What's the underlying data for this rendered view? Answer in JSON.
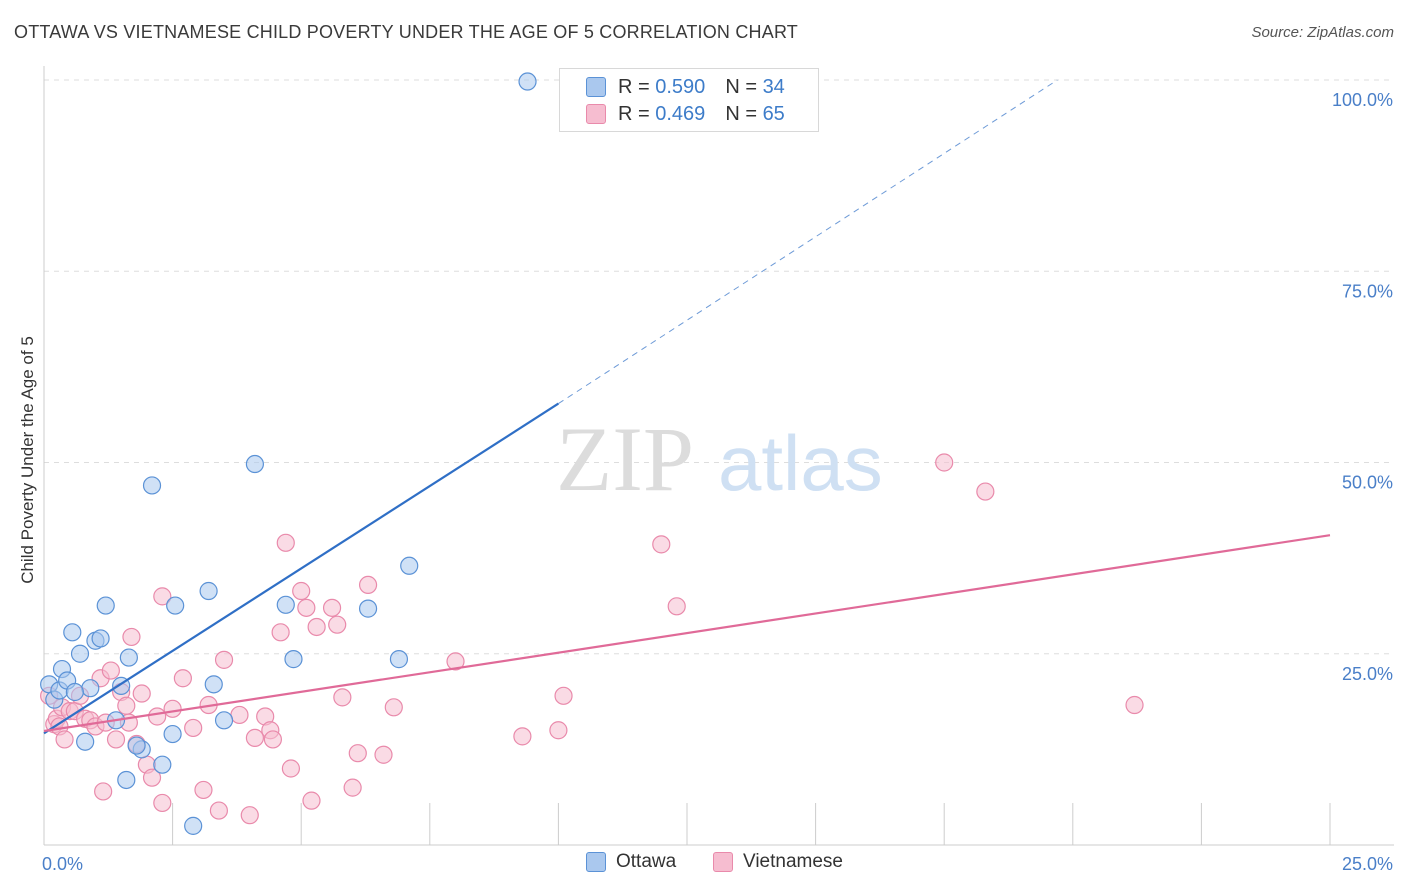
{
  "title": "OTTAWA VS VIETNAMESE CHILD POVERTY UNDER THE AGE OF 5 CORRELATION CHART",
  "source": "Source: ZipAtlas.com",
  "watermark": {
    "zip": "ZIP",
    "atlas": "atlas"
  },
  "colors": {
    "ottawa_fill": "#aac8ee",
    "ottawa_stroke": "#5b92d6",
    "ottawa_line": "#2f6fc6",
    "viet_fill": "#f6bdd0",
    "viet_stroke": "#e98aab",
    "viet_line": "#e06a98",
    "tick_label": "#4a7fc8",
    "grid": "#dddddd"
  },
  "legend": {
    "rows": [
      {
        "r_label": "R =",
        "r_value": "0.590",
        "n_label": "N =",
        "n_value": "34"
      },
      {
        "r_label": "R =",
        "r_value": "0.469",
        "n_label": "N =",
        "n_value": "65"
      }
    ]
  },
  "bottom_legend": {
    "ottawa": "Ottawa",
    "vietnamese": "Vietnamese"
  },
  "chart_data": {
    "type": "scatter",
    "title": "OTTAWA VS VIETNAMESE CHILD POVERTY UNDER THE AGE OF 5 CORRELATION CHART",
    "xlabel": "",
    "ylabel": "Child Poverty Under the Age of 5",
    "xlim": [
      0,
      25
    ],
    "ylim": [
      0,
      100
    ],
    "x_tick_labels": [
      "0.0%",
      "25.0%"
    ],
    "y_tick_labels": [
      "25.0%",
      "50.0%",
      "75.0%",
      "100.0%"
    ],
    "y_ticks": [
      25,
      50,
      75,
      100
    ],
    "grid": true,
    "legend_position": "top-center",
    "series": [
      {
        "name": "Ottawa",
        "r": 0.59,
        "n": 34,
        "trend": {
          "x0": 0,
          "y0": 14.6,
          "x1": 10.0,
          "y1": 57.7,
          "x_dash_end": 19.7,
          "y_dash_end": 100
        },
        "points": [
          [
            0.1,
            21.0
          ],
          [
            0.2,
            19.0
          ],
          [
            0.3,
            20.2
          ],
          [
            0.35,
            23.0
          ],
          [
            0.45,
            21.5
          ],
          [
            0.55,
            27.8
          ],
          [
            0.7,
            25.0
          ],
          [
            0.8,
            13.5
          ],
          [
            0.9,
            20.5
          ],
          [
            1.0,
            26.7
          ],
          [
            1.1,
            27.0
          ],
          [
            1.2,
            31.3
          ],
          [
            1.4,
            16.3
          ],
          [
            1.5,
            20.8
          ],
          [
            1.6,
            8.5
          ],
          [
            1.65,
            24.5
          ],
          [
            1.9,
            12.5
          ],
          [
            2.1,
            47.0
          ],
          [
            2.3,
            10.5
          ],
          [
            2.5,
            14.5
          ],
          [
            2.55,
            31.3
          ],
          [
            3.2,
            33.2
          ],
          [
            3.3,
            21.0
          ],
          [
            3.5,
            16.3
          ],
          [
            2.9,
            2.5
          ],
          [
            4.1,
            49.8
          ],
          [
            4.7,
            31.4
          ],
          [
            4.85,
            24.3
          ],
          [
            6.3,
            30.9
          ],
          [
            6.9,
            24.3
          ],
          [
            7.1,
            36.5
          ],
          [
            9.4,
            99.8
          ],
          [
            0.6,
            20.0
          ],
          [
            1.8,
            13.0
          ]
        ]
      },
      {
        "name": "Vietnamese",
        "r": 0.469,
        "n": 65,
        "trend": {
          "x0": 0,
          "y0": 14.9,
          "x1": 25.0,
          "y1": 40.5
        },
        "points": [
          [
            0.1,
            19.5
          ],
          [
            0.2,
            15.8
          ],
          [
            0.25,
            16.5
          ],
          [
            0.3,
            15.5
          ],
          [
            0.35,
            18.0
          ],
          [
            0.4,
            13.8
          ],
          [
            0.5,
            17.5
          ],
          [
            0.6,
            17.5
          ],
          [
            0.7,
            19.5
          ],
          [
            0.8,
            16.5
          ],
          [
            0.9,
            16.3
          ],
          [
            1.0,
            15.5
          ],
          [
            1.1,
            21.8
          ],
          [
            1.15,
            7.0
          ],
          [
            1.2,
            16.0
          ],
          [
            1.3,
            22.8
          ],
          [
            1.4,
            13.8
          ],
          [
            1.5,
            20.0
          ],
          [
            1.6,
            18.2
          ],
          [
            1.65,
            16.0
          ],
          [
            1.7,
            27.2
          ],
          [
            1.8,
            13.2
          ],
          [
            1.9,
            19.8
          ],
          [
            2.0,
            10.5
          ],
          [
            2.1,
            8.8
          ],
          [
            2.2,
            16.8
          ],
          [
            2.3,
            5.5
          ],
          [
            2.3,
            32.5
          ],
          [
            2.5,
            17.8
          ],
          [
            2.7,
            21.8
          ],
          [
            2.9,
            15.3
          ],
          [
            3.1,
            7.2
          ],
          [
            3.2,
            18.3
          ],
          [
            3.4,
            4.5
          ],
          [
            3.5,
            24.2
          ],
          [
            3.8,
            17.0
          ],
          [
            4.0,
            3.9
          ],
          [
            4.1,
            14.0
          ],
          [
            4.3,
            16.8
          ],
          [
            4.4,
            15.0
          ],
          [
            4.45,
            13.8
          ],
          [
            4.6,
            27.8
          ],
          [
            4.7,
            39.5
          ],
          [
            4.8,
            10.0
          ],
          [
            5.0,
            33.2
          ],
          [
            5.1,
            31.0
          ],
          [
            5.2,
            5.8
          ],
          [
            5.3,
            28.5
          ],
          [
            5.6,
            31.0
          ],
          [
            5.7,
            28.8
          ],
          [
            5.8,
            19.3
          ],
          [
            6.0,
            7.5
          ],
          [
            6.1,
            12.0
          ],
          [
            6.3,
            34.0
          ],
          [
            6.6,
            11.8
          ],
          [
            6.8,
            18.0
          ],
          [
            8.0,
            24.0
          ],
          [
            9.3,
            14.2
          ],
          [
            10.0,
            15.0
          ],
          [
            10.1,
            19.5
          ],
          [
            12.0,
            39.3
          ],
          [
            12.3,
            31.2
          ],
          [
            17.5,
            50.0
          ],
          [
            18.3,
            46.2
          ],
          [
            21.2,
            18.3
          ]
        ]
      }
    ]
  }
}
